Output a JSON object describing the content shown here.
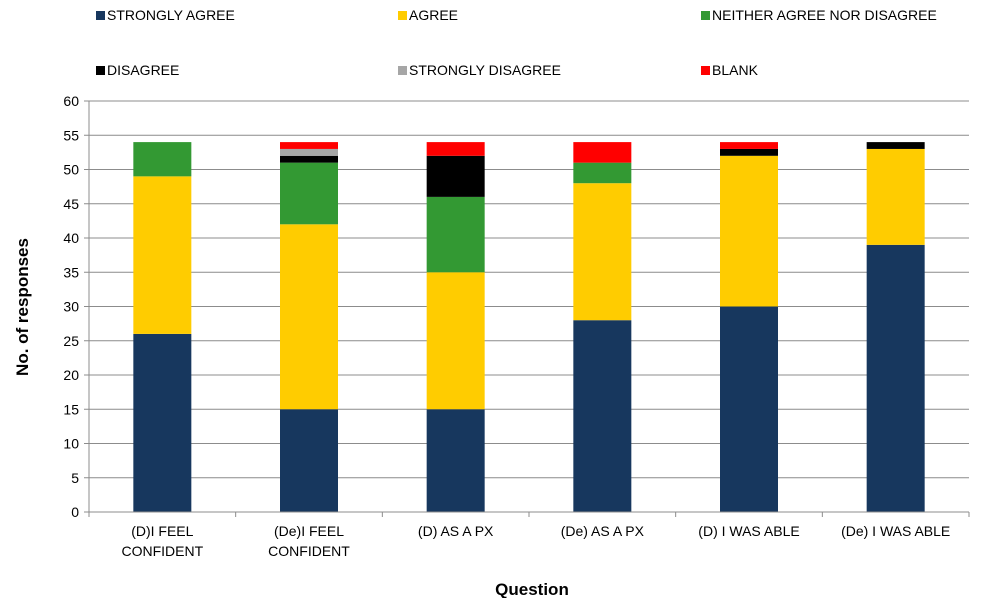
{
  "chart_data": {
    "type": "bar",
    "stacked": true,
    "xlabel": "Question",
    "ylabel": "No. of responses",
    "ylim": [
      0,
      60
    ],
    "ytick_step": 5,
    "grid": "horizontal",
    "legend_position": "top",
    "categories": [
      [
        "(D)I FEEL",
        "CONFIDENT"
      ],
      [
        "(De)I FEEL",
        "CONFIDENT"
      ],
      [
        "(D) AS A PX"
      ],
      [
        "(De) AS A PX"
      ],
      [
        "(D) I WAS ABLE"
      ],
      [
        "(De) I WAS ABLE"
      ]
    ],
    "series": [
      {
        "name": "STRONGLY AGREE",
        "color": "#17375e",
        "values": [
          26,
          15,
          15,
          28,
          30,
          39
        ]
      },
      {
        "name": "AGREE",
        "color": "#ffcc00",
        "values": [
          23,
          27,
          20,
          20,
          22,
          14
        ]
      },
      {
        "name": "NEITHER AGREE NOR DISAGREE",
        "color": "#339933",
        "values": [
          5,
          9,
          11,
          3,
          0,
          0
        ]
      },
      {
        "name": "DISAGREE",
        "color": "#000000",
        "values": [
          0,
          1,
          6,
          0,
          1,
          1
        ]
      },
      {
        "name": "STRONGLY DISAGREE",
        "color": "#a6a6a6",
        "values": [
          0,
          1,
          0,
          0,
          0,
          0
        ]
      },
      {
        "name": "BLANK",
        "color": "#ff0000",
        "values": [
          0,
          1,
          2,
          3,
          1,
          0
        ]
      }
    ]
  }
}
